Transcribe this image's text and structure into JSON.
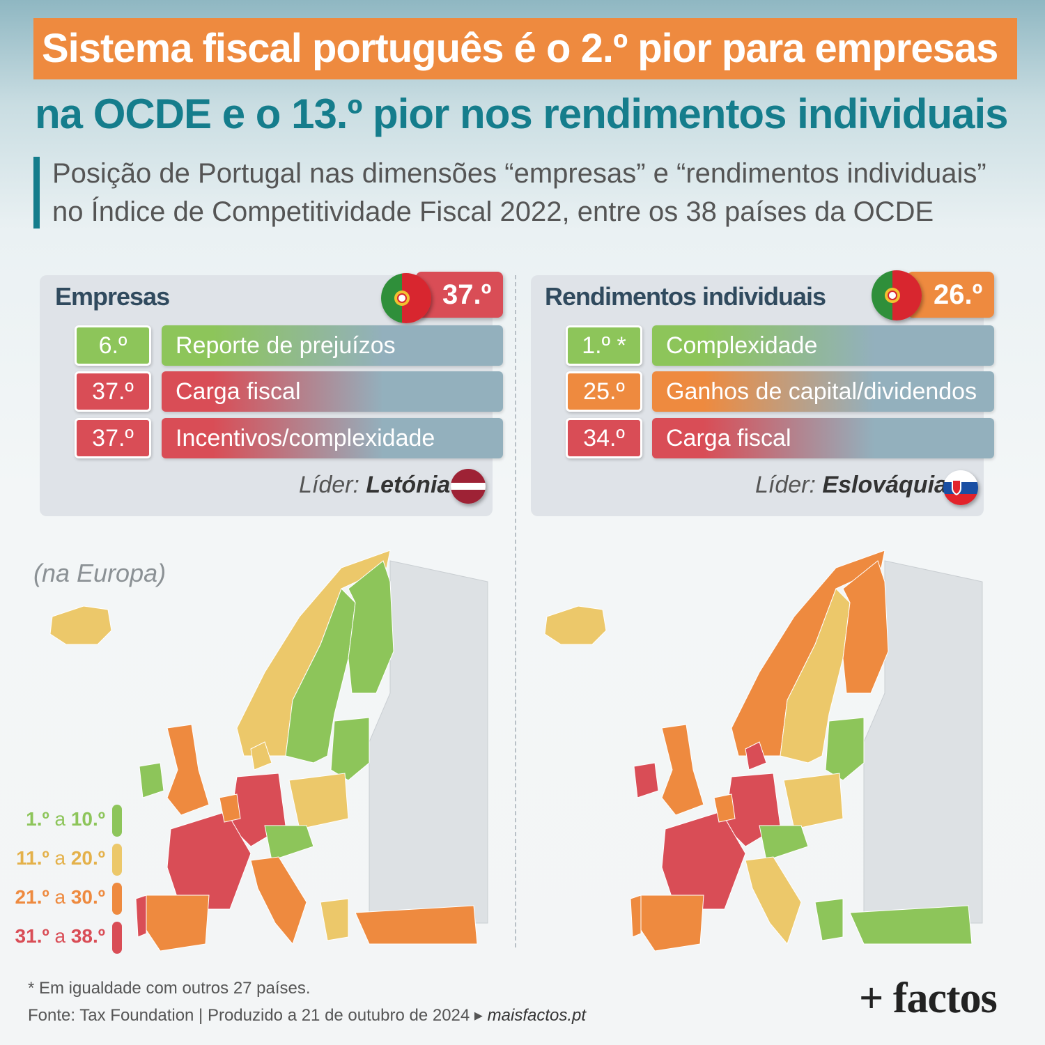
{
  "title_line1": "Sistema fiscal português é o 2.º pior para empresas",
  "title_line2": "na OCDE e o 13.º pior nos rendimentos individuais",
  "subtitle_line1": "Posição de Portugal nas dimensões “empresas” e “rendimentos individuais”",
  "subtitle_line2": "no Índice de Competitividade Fiscal 2022, entre os 38 países da OCDE",
  "colors": {
    "green": "#8dc55a",
    "yellow": "#ecc86a",
    "orange": "#ee8a3f",
    "red": "#d94d56",
    "teal": "#157d8c"
  },
  "empresas": {
    "title": "Empresas",
    "overall_rank": "37.º",
    "overall_color": "red",
    "rows": [
      {
        "rank": "6.º",
        "label": "Reporte de prejuízos",
        "color": "green"
      },
      {
        "rank": "37.º",
        "label": "Carga fiscal",
        "color": "red"
      },
      {
        "rank": "37.º",
        "label": "Incentivos/complexidade",
        "color": "red"
      }
    ],
    "leader_prefix": "Líder:",
    "leader": "Letónia",
    "leader_flag": "latvia-flag-icon"
  },
  "rendimentos": {
    "title": "Rendimentos individuais",
    "overall_rank": "26.º",
    "overall_color": "orange",
    "rows": [
      {
        "rank": "1.º *",
        "label": "Complexidade",
        "color": "green"
      },
      {
        "rank": "25.º",
        "label": "Ganhos de capital/dividendos",
        "color": "orange"
      },
      {
        "rank": "34.º",
        "label": "Carga fiscal",
        "color": "red"
      }
    ],
    "leader_prefix": "Líder:",
    "leader": "Eslováquia",
    "leader_flag": "slovakia-flag-icon"
  },
  "map_note": "(na Europa)",
  "legend": [
    {
      "from": "1.º",
      "sep": "a",
      "to": "10.º",
      "color": "green"
    },
    {
      "from": "11.º",
      "sep": "a",
      "to": "20.º",
      "color": "yellow"
    },
    {
      "from": "21.º",
      "sep": "a",
      "to": "30.º",
      "color": "orange"
    },
    {
      "from": "31.º",
      "sep": "a",
      "to": "38.º",
      "color": "red"
    }
  ],
  "footnote": "* Em igualdade com outros 27 países.",
  "source": "Fonte: Tax Foundation  |  Produzido a 21 de outubro de 2024 ▸",
  "site": "maisfactos.pt",
  "logo": "+ factos"
}
